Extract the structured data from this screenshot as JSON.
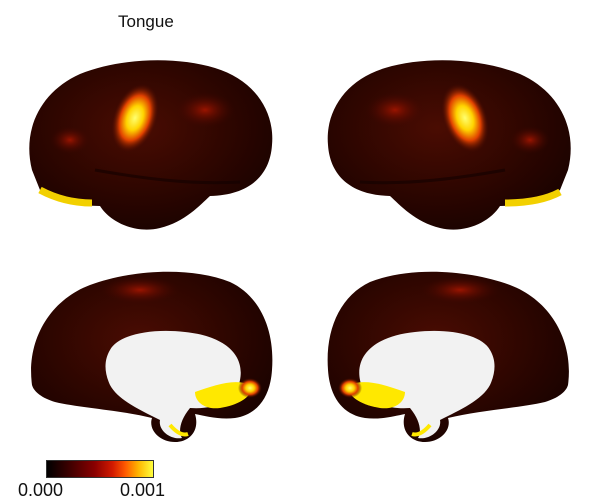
{
  "title": "Tongue",
  "colorbar": {
    "min_label": "0.000",
    "max_label": "0.001",
    "stops": [
      "#000000",
      "#3a0000",
      "#8a0000",
      "#d21a00",
      "#ff5a00",
      "#ffb400",
      "#ffff3c"
    ]
  },
  "views": [
    "left-lateral",
    "right-lateral",
    "left-medial",
    "right-medial"
  ],
  "colors": {
    "background": "#ffffff",
    "cortex_dark": "#2a0500",
    "medial_wall": "#f2f2f2",
    "hot": "#ffff3c"
  }
}
